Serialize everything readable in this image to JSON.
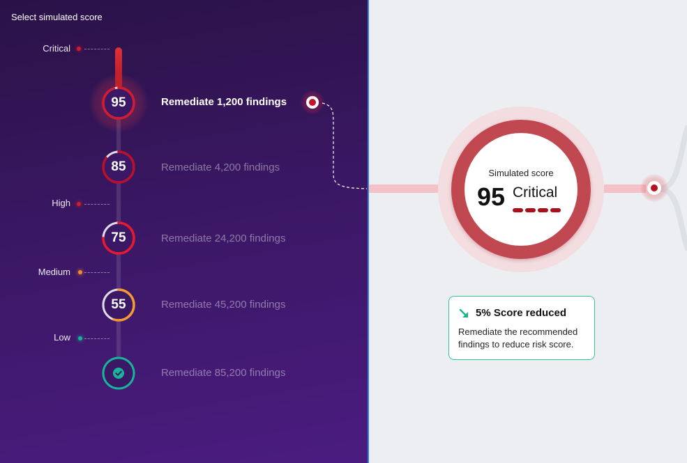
{
  "panel": {
    "title": "Select simulated score"
  },
  "severity_levels": [
    {
      "label": "Critical",
      "color": "#d11b2e"
    },
    {
      "label": "High",
      "color": "#d11b2e"
    },
    {
      "label": "Medium",
      "color": "#f08a2c"
    },
    {
      "label": "Low",
      "color": "#19b39a"
    }
  ],
  "score_options": [
    {
      "score": "95",
      "finding": "Remediate 1,200 findings",
      "selected": true,
      "color": "#d11b2e",
      "progress": 0.95
    },
    {
      "score": "85",
      "finding": "Remediate 4,200 findings",
      "selected": false,
      "color": "#b8102a",
      "progress": 0.85
    },
    {
      "score": "75",
      "finding": "Remediate 24,200 findings",
      "selected": false,
      "color": "#e6192e",
      "progress": 0.75
    },
    {
      "score": "55",
      "finding": "Remediate 45,200 findings",
      "selected": false,
      "color": "#f59a2e",
      "progress": 0.55
    },
    {
      "score": "",
      "finding": "Remediate 85,200 findings",
      "selected": false,
      "color": "#19b39a",
      "icon": "check-icon"
    }
  ],
  "simulated": {
    "label": "Simulated score",
    "score": "95",
    "severity": "Critical",
    "accent": "#a8101d"
  },
  "card": {
    "title": "5% Score reduced",
    "description": "Remediate the recommended findings to reduce risk score.",
    "icon": "trend-down-arrow-icon",
    "accent": "#2fc49a"
  }
}
